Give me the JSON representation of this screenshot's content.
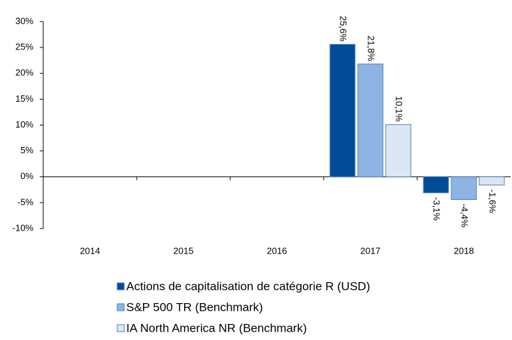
{
  "chart_data": {
    "type": "bar",
    "categories": [
      "2014",
      "2015",
      "2016",
      "2017",
      "2018"
    ],
    "series": [
      {
        "name": "Actions de capitalisation de catégorie R (USD)",
        "color": "#004c97",
        "values": [
          null,
          null,
          null,
          25.6,
          -3.1
        ],
        "value_labels": [
          null,
          null,
          null,
          "25,6%",
          "-3,1%"
        ]
      },
      {
        "name": "S&P 500 TR (Benchmark)",
        "color": "#8db4e2",
        "values": [
          null,
          null,
          null,
          21.8,
          -4.4
        ],
        "value_labels": [
          null,
          null,
          null,
          "21,8%",
          "-4,4%"
        ]
      },
      {
        "name": "IA North America NR (Benchmark)",
        "color": "#dce6f2",
        "values": [
          null,
          null,
          null,
          10.1,
          -1.6
        ],
        "value_labels": [
          null,
          null,
          null,
          "10,1%",
          "-1,6%"
        ]
      }
    ],
    "ylim": [
      -10,
      30
    ],
    "yticks": [
      {
        "value": -10,
        "label": "-10%"
      },
      {
        "value": -5,
        "label": "-5%"
      },
      {
        "value": 0,
        "label": "0%"
      },
      {
        "value": 5,
        "label": "5%"
      },
      {
        "value": 10,
        "label": "10%"
      },
      {
        "value": 15,
        "label": "15%"
      },
      {
        "value": 20,
        "label": "20%"
      },
      {
        "value": 25,
        "label": "25%"
      },
      {
        "value": 30,
        "label": "30%"
      }
    ],
    "legend": "bottom"
  }
}
